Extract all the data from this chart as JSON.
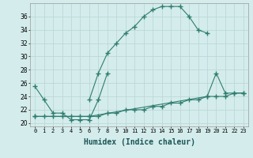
{
  "xlabel": "Humidex (Indice chaleur)",
  "background_color": "#d4ecec",
  "grid_color": "#b8d4d4",
  "line_color": "#2e7d6e",
  "xlim": [
    -0.5,
    23.5
  ],
  "ylim": [
    19.5,
    38.0
  ],
  "yticks": [
    20,
    22,
    24,
    26,
    28,
    30,
    32,
    34,
    36
  ],
  "xticks": [
    0,
    1,
    2,
    3,
    4,
    5,
    6,
    7,
    8,
    9,
    10,
    11,
    12,
    13,
    14,
    15,
    16,
    17,
    18,
    19,
    20,
    21,
    22,
    23
  ],
  "curve1_x": [
    0,
    1,
    2,
    3,
    4,
    5,
    6,
    7,
    8
  ],
  "curve1_y": [
    25.5,
    23.5,
    21.5,
    21.5,
    20.5,
    20.5,
    20.5,
    23.5,
    27.5
  ],
  "curve2_x": [
    6,
    7,
    8,
    9,
    10,
    11,
    12,
    13,
    14,
    15,
    16,
    17,
    18,
    19
  ],
  "curve2_y": [
    23.5,
    27.5,
    30.5,
    32,
    33.5,
    34.5,
    36,
    37,
    37.5,
    37.5,
    37.5,
    36,
    34,
    33.5
  ],
  "curve3_x": [
    0,
    6,
    19,
    20,
    21,
    22,
    23
  ],
  "curve3_y": [
    21,
    21,
    24,
    27.5,
    24.5,
    24.5,
    24.5
  ],
  "curve4_x": [
    0,
    1,
    2,
    3,
    4,
    5,
    6,
    7,
    8,
    9,
    10,
    11,
    12,
    13,
    14,
    15,
    16,
    17,
    18,
    19,
    20,
    21,
    22,
    23
  ],
  "curve4_y": [
    21,
    21,
    21,
    21,
    21,
    21,
    21,
    21,
    21.5,
    21.5,
    22,
    22,
    22,
    22.5,
    22.5,
    23,
    23,
    23.5,
    23.5,
    24,
    24,
    24,
    24.5,
    24.5
  ]
}
